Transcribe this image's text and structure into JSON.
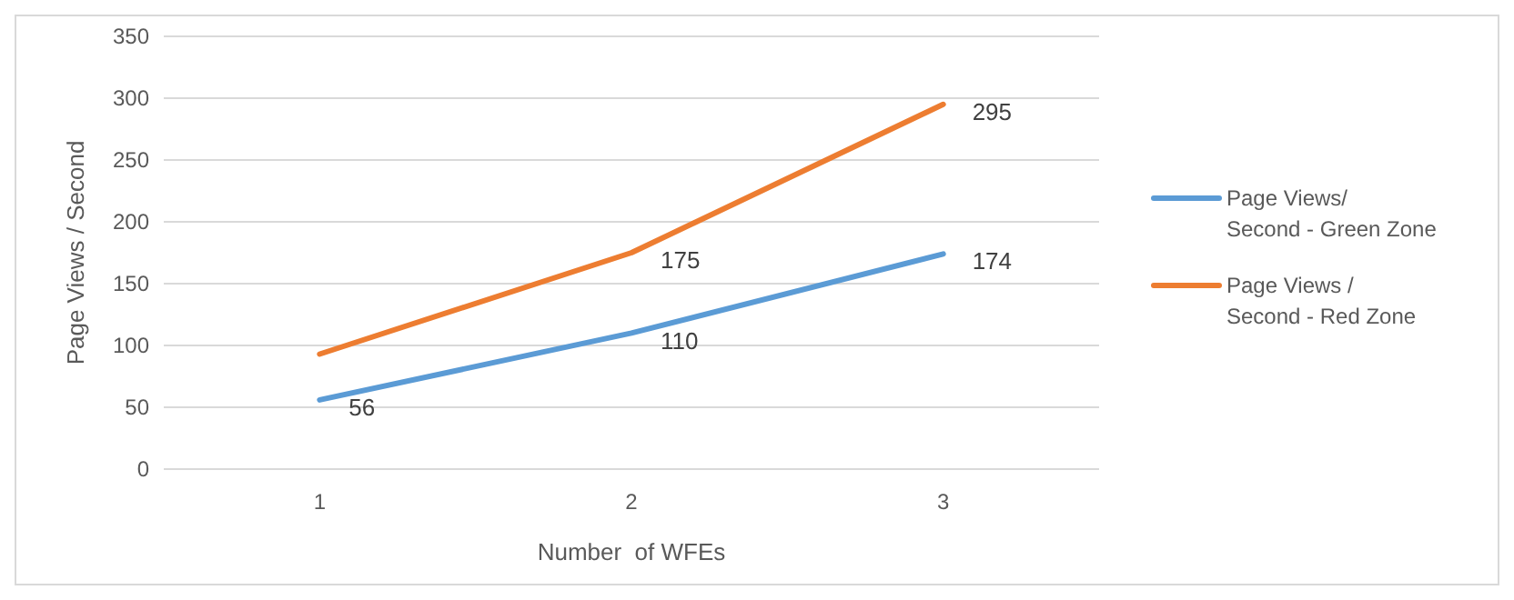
{
  "chart_data": {
    "type": "line",
    "xlabel": "Number  of WFEs",
    "ylabel": "Page Views / Second",
    "categories": [
      "1",
      "2",
      "3"
    ],
    "series": [
      {
        "name": "Page Views/ Second - Green Zone",
        "color": "#5b9bd5",
        "values": [
          56,
          110,
          174
        ],
        "value_labels": [
          "56",
          "110",
          "174"
        ]
      },
      {
        "name": "Page Views / Second - Red Zone",
        "color": "#ed7d31",
        "values": [
          93,
          175,
          295
        ],
        "value_labels": [
          null,
          "175",
          "295"
        ]
      }
    ],
    "ylim": [
      0,
      350
    ],
    "yticks": [
      0,
      50,
      100,
      150,
      200,
      250,
      300,
      350
    ],
    "grid": "y",
    "legend": "right",
    "marker": "none",
    "line_style": "solid"
  }
}
